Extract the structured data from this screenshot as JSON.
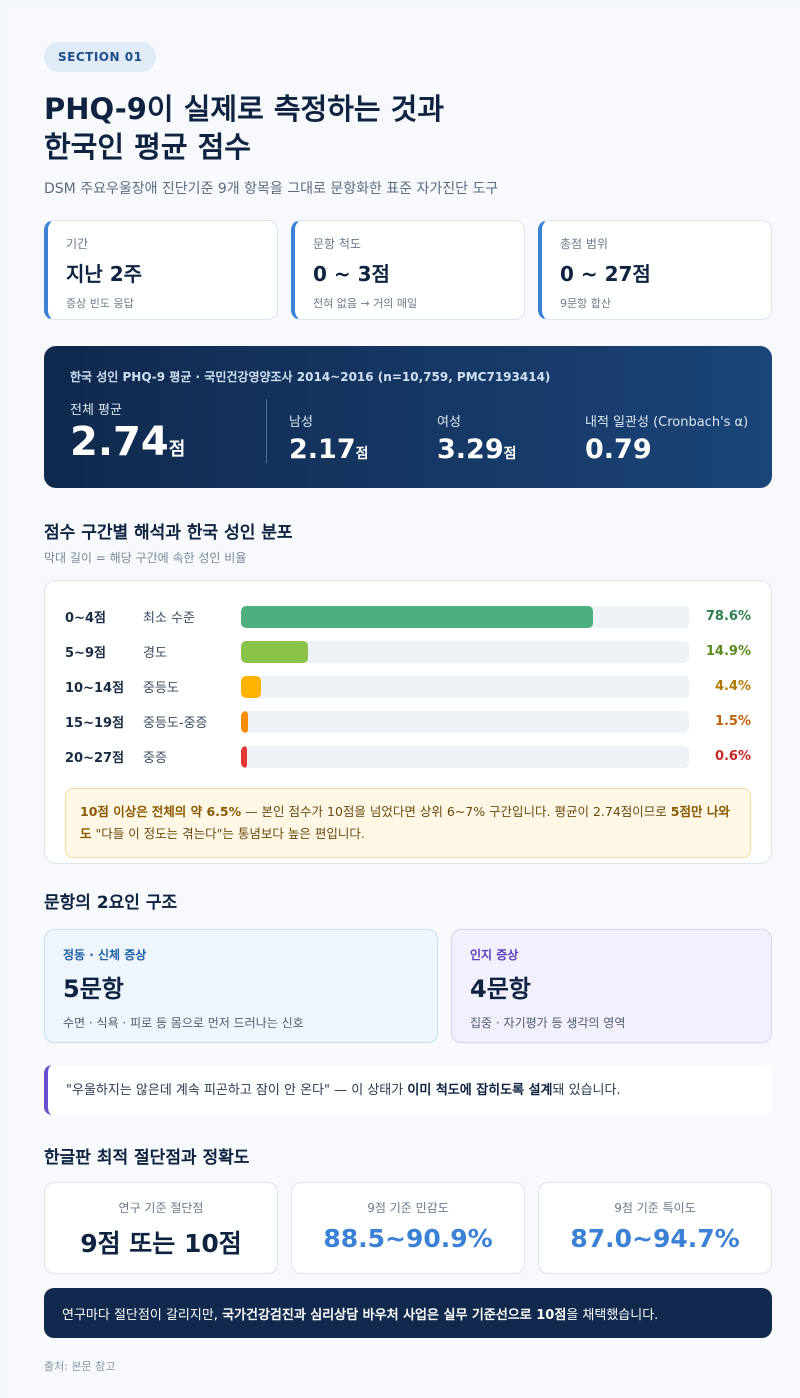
{
  "badge": "SECTION 01",
  "title_line1": "PHQ-9이 실제로 측정하는 것과",
  "title_line2": "한국인 평균 점수",
  "subtitle": "DSM 주요우울장애 진단기준 9개 항목을 그대로 문항화한 표준 자가진단 도구",
  "info_cards": [
    {
      "label": "기간",
      "value": "지난 2주",
      "sub": "증상 빈도 응답"
    },
    {
      "label": "문항 척도",
      "value": "0 ~ 3점",
      "sub": "전혀 없음 → 거의 매일"
    },
    {
      "label": "총점 범위",
      "value": "0 ~ 27점",
      "sub": "9문항 합산"
    }
  ],
  "stats": {
    "heading": "한국 성인 PHQ-9 평균 · 국민건강영양조사 2014~2016 (n=10,759, PMC7193414)",
    "overall_label": "전체 평균",
    "overall_value": "2.74",
    "unit": "점",
    "male_label": "남성",
    "male_value": "2.17",
    "female_label": "여성",
    "female_value": "3.29",
    "alpha_label": "내적 일관성 (Cronbach's α)",
    "alpha_value": "0.79"
  },
  "distribution": {
    "title": "점수 구간별 해석과 한국 성인 분포",
    "subtitle": "막대 길이 = 해당 구간에 속한 성인 비율",
    "rows": [
      {
        "range": "0~4점",
        "name": "최소 수준",
        "value": 78.6,
        "pct": "78.6%",
        "color": "#4caf7d",
        "text_color": "#2e7d4f"
      },
      {
        "range": "5~9점",
        "name": "경도",
        "value": 14.9,
        "pct": "14.9%",
        "color": "#8bc34a",
        "text_color": "#5b8a1e"
      },
      {
        "range": "10~14점",
        "name": "중등도",
        "value": 4.4,
        "pct": "4.4%",
        "color": "#ffb300",
        "text_color": "#b07a00"
      },
      {
        "range": "15~19점",
        "name": "중등도-중증",
        "value": 1.5,
        "pct": "1.5%",
        "color": "#fb8c00",
        "text_color": "#c0620a"
      },
      {
        "range": "20~27점",
        "name": "중증",
        "value": 0.6,
        "pct": "0.6%",
        "color": "#e53935",
        "text_color": "#c62828"
      }
    ],
    "note_b1": "10점 이상은",
    "note_b2": "전체의 약 6.5%",
    "note_t1": " — 본인 점수가 10점을 넘었다면 상위 6~7% 구간입니다. 평균이 2.74점이므로 ",
    "note_b3": "5점만 나와도",
    "note_t2": " \"다들 이 정도는 겪는다\"는 통념보다 높은 편입니다."
  },
  "factors": {
    "title": "문항의 2요인 구조",
    "items": [
      {
        "label": "정동 · 신체 증상",
        "value": "5문항",
        "desc": "수면 · 식욕 · 피로 등 몸으로 먼저 드러나는 신호",
        "bg": "#eef5fd",
        "border": "#c9dcf2",
        "color": "#1e5fa8"
      },
      {
        "label": "인지 증상",
        "value": "4문항",
        "desc": "집중 · 자기평가 등 생각의 영역",
        "bg": "#f3f0fd",
        "border": "#d9d0f5",
        "color": "#5a3fbf"
      }
    ]
  },
  "quote": {
    "t1": "\"우울하지는 않은데 계속 피곤하고 잠이 안 온다\" — 이 상태가 ",
    "b1": "이미 척도에 잡히도록 설계",
    "t2": "돼 있습니다."
  },
  "cutoff": {
    "title": "한글판 최적 절단점과 정확도",
    "items": [
      {
        "label": "연구 기준 절단점",
        "value": "9점 또는 10점",
        "color": "#0f2340"
      },
      {
        "label": "9점 기준 민감도",
        "value": "88.5~90.9%",
        "color": "#3b82d6"
      },
      {
        "label": "9점 기준 특이도",
        "value": "87.0~94.7%",
        "color": "#3b82d6"
      }
    ]
  },
  "footer": {
    "t1": "연구마다 절단점이 갈리지만, ",
    "b1": "국가건강검진과 심리상담 바우처 사업은 실무 기준선으로 10점",
    "t2": "을 채택했습니다."
  },
  "source": "출처: 본문 참고"
}
